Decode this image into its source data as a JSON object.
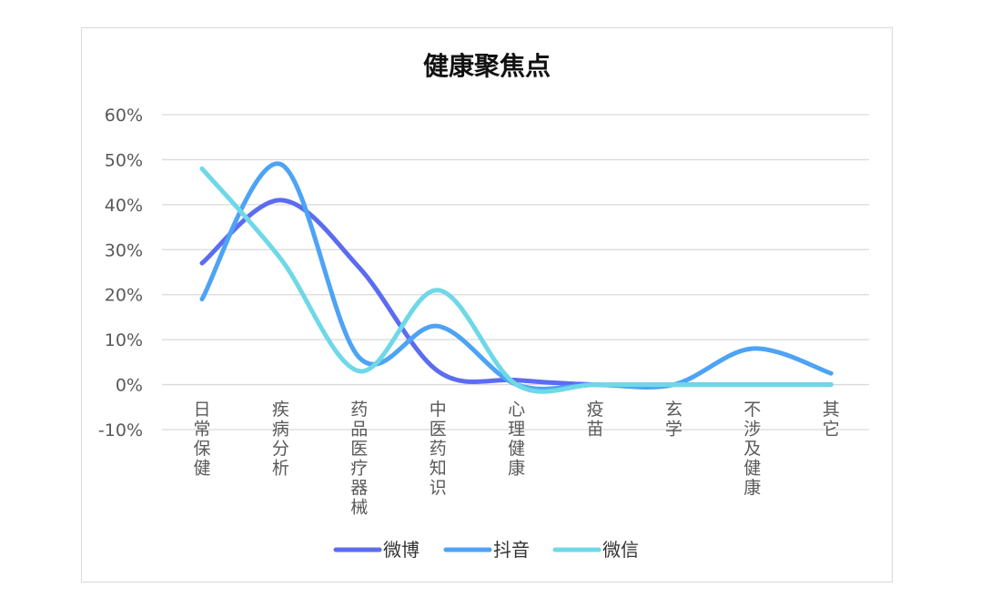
{
  "chart_data": {
    "type": "line",
    "smooth": true,
    "title": "健康聚焦点",
    "xlabel": "",
    "ylabel": "",
    "categories": [
      "日常保健",
      "疾病分析",
      "药品医疗器械",
      "中医药知识",
      "心理健康",
      "疫苗",
      "玄学",
      "不涉及健康",
      "其它"
    ],
    "ylim": [
      -10,
      60
    ],
    "yticks": [
      "60%",
      "50%",
      "40%",
      "30%",
      "20%",
      "10%",
      "0%",
      "-10%"
    ],
    "yticks_values": [
      60,
      50,
      40,
      30,
      20,
      10,
      0,
      -10
    ],
    "grid": true,
    "legend_position": "bottom",
    "series": [
      {
        "name": "微博",
        "color": "#5b6cf0",
        "values": [
          27,
          41,
          26,
          3,
          1,
          0,
          0,
          0,
          0
        ]
      },
      {
        "name": "抖音",
        "color": "#4da3f5",
        "values": [
          19,
          49,
          6,
          13,
          0,
          0,
          0,
          8,
          2.5
        ]
      },
      {
        "name": "微信",
        "color": "#6fd8e8",
        "values": [
          48,
          28,
          3,
          21,
          0,
          0,
          0,
          0,
          0
        ]
      }
    ]
  }
}
